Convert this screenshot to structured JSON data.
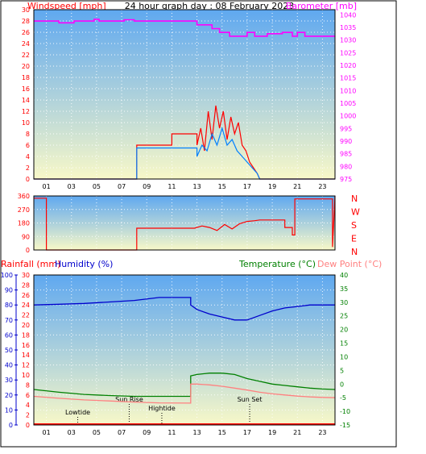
{
  "chart_data": [
    {
      "type": "line",
      "title": "24 hour graph day : 08 February 2023",
      "ylabel_left": "Windspeed [mph]",
      "ylabel_right": "Barometer [mb]",
      "x_ticks": [
        "01",
        "03",
        "05",
        "07",
        "09",
        "11",
        "13",
        "15",
        "17",
        "19",
        "21",
        "23"
      ],
      "y_left_ticks": [
        "0",
        "2",
        "4",
        "6",
        "8",
        "10",
        "12",
        "14",
        "16",
        "18",
        "20",
        "22",
        "24",
        "26",
        "28",
        "30"
      ],
      "y_right_ticks": [
        "975",
        "980",
        "985",
        "990",
        "995",
        "1000",
        "1005",
        "1010",
        "1015",
        "1020",
        "1025",
        "1030",
        "1035",
        "1040"
      ],
      "ylim_left": [
        0,
        30
      ],
      "ylim_right": [
        975,
        1042
      ],
      "xlim": [
        0,
        24
      ],
      "series": [
        {
          "name": "Barometer",
          "color": "#ff00ff",
          "axis": "right",
          "points": [
            [
              0,
              1037.5
            ],
            [
              2,
              1037.5
            ],
            [
              2,
              1036.8
            ],
            [
              3.2,
              1036.8
            ],
            [
              3.2,
              1037.5
            ],
            [
              4.8,
              1037.5
            ],
            [
              4.8,
              1038.2
            ],
            [
              5.2,
              1038.2
            ],
            [
              5.2,
              1037.5
            ],
            [
              7.2,
              1037.5
            ],
            [
              7.2,
              1038
            ],
            [
              8,
              1038
            ],
            [
              8,
              1037.5
            ],
            [
              13,
              1037.5
            ],
            [
              13,
              1036
            ],
            [
              14.2,
              1036
            ],
            [
              14.2,
              1034.5
            ],
            [
              14.8,
              1034.5
            ],
            [
              14.8,
              1033
            ],
            [
              15.6,
              1033
            ],
            [
              15.6,
              1031.5
            ],
            [
              17,
              1031.5
            ],
            [
              17,
              1033
            ],
            [
              17.6,
              1033
            ],
            [
              17.6,
              1031.5
            ],
            [
              18.6,
              1031.5
            ],
            [
              18.6,
              1032.5
            ],
            [
              19.8,
              1032.5
            ],
            [
              19.8,
              1033
            ],
            [
              20.6,
              1033
            ],
            [
              20.6,
              1031.5
            ],
            [
              21,
              1031.5
            ],
            [
              21,
              1033
            ],
            [
              21.6,
              1033
            ],
            [
              21.6,
              1031.5
            ],
            [
              24,
              1031.5
            ]
          ]
        },
        {
          "name": "Wind gust",
          "color": "#ff0000",
          "axis": "left",
          "points": [
            [
              0,
              0
            ],
            [
              8.2,
              0
            ],
            [
              8.2,
              6
            ],
            [
              11,
              6
            ],
            [
              11,
              8
            ],
            [
              13,
              8
            ],
            [
              13,
              6
            ],
            [
              13.3,
              9
            ],
            [
              13.6,
              5
            ],
            [
              13.9,
              12
            ],
            [
              14.2,
              7
            ],
            [
              14.5,
              13
            ],
            [
              14.8,
              9
            ],
            [
              15.1,
              12
            ],
            [
              15.4,
              7
            ],
            [
              15.7,
              11
            ],
            [
              16,
              8
            ],
            [
              16.3,
              10
            ],
            [
              16.6,
              6
            ],
            [
              16.9,
              5
            ],
            [
              17.2,
              3
            ],
            [
              17.5,
              2
            ],
            [
              17.8,
              1
            ],
            [
              18,
              0
            ],
            [
              24,
              0
            ]
          ]
        },
        {
          "name": "Wind speed",
          "color": "#0080ff",
          "axis": "left",
          "points": [
            [
              0,
              0
            ],
            [
              8.2,
              0
            ],
            [
              8.2,
              5.5
            ],
            [
              13,
              5.5
            ],
            [
              13,
              4
            ],
            [
              13.4,
              6
            ],
            [
              13.8,
              5
            ],
            [
              14.2,
              8
            ],
            [
              14.6,
              6
            ],
            [
              15,
              9
            ],
            [
              15.4,
              6
            ],
            [
              15.8,
              7
            ],
            [
              16.2,
              5
            ],
            [
              16.6,
              4
            ],
            [
              17,
              3
            ],
            [
              17.4,
              2
            ],
            [
              17.8,
              1
            ],
            [
              18,
              0
            ],
            [
              24,
              0
            ]
          ]
        }
      ]
    },
    {
      "type": "line",
      "y_left_ticks": [
        "0",
        "90",
        "180",
        "270",
        "360"
      ],
      "y_right_labels": [
        "N",
        "W",
        "S",
        "E",
        "N"
      ],
      "ylim": [
        0,
        360
      ],
      "series": [
        {
          "name": "Wind direction",
          "color": "#ff0000",
          "points": [
            [
              0,
              345
            ],
            [
              1,
              345
            ],
            [
              1,
              0
            ],
            [
              8.2,
              0
            ],
            [
              8.2,
              145
            ],
            [
              12.8,
              145
            ],
            [
              13.4,
              160
            ],
            [
              14,
              150
            ],
            [
              14.6,
              130
            ],
            [
              15.2,
              170
            ],
            [
              15.8,
              140
            ],
            [
              16.4,
              175
            ],
            [
              17,
              190
            ],
            [
              17.6,
              195
            ],
            [
              18,
              200
            ],
            [
              20,
              200
            ],
            [
              20,
              150
            ],
            [
              20.6,
              150
            ],
            [
              20.6,
              100
            ],
            [
              20.8,
              100
            ],
            [
              20.8,
              340
            ],
            [
              23.8,
              340
            ],
            [
              23.8,
              20
            ],
            [
              24,
              360
            ]
          ]
        }
      ]
    },
    {
      "type": "line",
      "ylabel_left_1": "Rainfall (mm)",
      "ylabel_left_2": "Humidity (%)",
      "ylabel_right_1": "Temperature (°C)",
      "ylabel_right_2": "Dew Point (°C)",
      "humidity_ticks": [
        "0",
        "10",
        "20",
        "30",
        "40",
        "50",
        "60",
        "70",
        "80",
        "90",
        "100"
      ],
      "rain_ticks": [
        "0",
        "2",
        "4",
        "6",
        "8",
        "10",
        "12",
        "14",
        "16",
        "18",
        "20",
        "22",
        "24",
        "26",
        "28",
        "30"
      ],
      "temp_ticks": [
        "-15",
        "-10",
        "-5",
        "0",
        "5",
        "10",
        "15",
        "20",
        "25",
        "30",
        "35",
        "40"
      ],
      "ylim_humidity": [
        0,
        100
      ],
      "ylim_temp": [
        -15,
        40
      ],
      "series": [
        {
          "name": "Humidity",
          "color": "#0000cc",
          "axis": "humidity",
          "points": [
            [
              0,
              80
            ],
            [
              2,
              80.5
            ],
            [
              4,
              81
            ],
            [
              6,
              82
            ],
            [
              8,
              83
            ],
            [
              10,
              85
            ],
            [
              12,
              85
            ],
            [
              12.5,
              85
            ],
            [
              12.5,
              80
            ],
            [
              13,
              77
            ],
            [
              14,
              74
            ],
            [
              15,
              72
            ],
            [
              16,
              70
            ],
            [
              17,
              70
            ],
            [
              18,
              73
            ],
            [
              19,
              76
            ],
            [
              20,
              78
            ],
            [
              21,
              79
            ],
            [
              22,
              80
            ],
            [
              23,
              80
            ],
            [
              24,
              80
            ]
          ]
        },
        {
          "name": "Temperature",
          "color": "#008000",
          "axis": "temp",
          "points": [
            [
              0,
              -2
            ],
            [
              2,
              -3
            ],
            [
              4,
              -3.8
            ],
            [
              6,
              -4.2
            ],
            [
              8,
              -4.5
            ],
            [
              10,
              -4.5
            ],
            [
              12.5,
              -4.5
            ],
            [
              12.5,
              3
            ],
            [
              13,
              3.5
            ],
            [
              14,
              4
            ],
            [
              15,
              4
            ],
            [
              16,
              3.5
            ],
            [
              17,
              2
            ],
            [
              18,
              1
            ],
            [
              19,
              0
            ],
            [
              20,
              -0.5
            ],
            [
              21,
              -1
            ],
            [
              22,
              -1.5
            ],
            [
              23,
              -1.8
            ],
            [
              24,
              -2
            ]
          ]
        },
        {
          "name": "Dew Point",
          "color": "#ff8080",
          "axis": "temp",
          "points": [
            [
              0,
              -4.5
            ],
            [
              2,
              -5.2
            ],
            [
              4,
              -5.8
            ],
            [
              6,
              -6.2
            ],
            [
              8,
              -6.6
            ],
            [
              10,
              -6.9
            ],
            [
              12.5,
              -7
            ],
            [
              12.5,
              0
            ],
            [
              13,
              0
            ],
            [
              14,
              -0.3
            ],
            [
              15,
              -0.8
            ],
            [
              16,
              -1.5
            ],
            [
              17,
              -2.2
            ],
            [
              18,
              -3
            ],
            [
              19,
              -3.6
            ],
            [
              20,
              -4
            ],
            [
              21,
              -4.4
            ],
            [
              22,
              -4.7
            ],
            [
              23,
              -4.9
            ],
            [
              24,
              -5
            ]
          ]
        },
        {
          "name": "Rainfall",
          "color": "#ff0000",
          "axis": "rain",
          "points": [
            [
              0,
              0
            ],
            [
              24,
              0
            ]
          ]
        }
      ],
      "annotations": [
        {
          "label": "Lowtide",
          "hour": 3.5
        },
        {
          "label": "Sun Rise",
          "hour": 7.6
        },
        {
          "label": "Hightide",
          "hour": 10.2
        },
        {
          "label": "Sun Set",
          "hour": 17.2
        }
      ]
    }
  ],
  "colors": {
    "wind_label": "#ff0000",
    "baro_label": "#ff00ff",
    "humidity_label": "#0000cc",
    "temp_label": "#008000",
    "dew_label": "#ff8080",
    "gradient_top": "#5fa8f0",
    "gradient_bottom": "#f8f8c8"
  }
}
